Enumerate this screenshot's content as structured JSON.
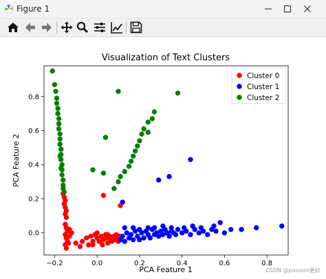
{
  "window": {
    "title": "Figure 1",
    "controls": [
      "minimize",
      "maximize",
      "close"
    ]
  },
  "toolbar": {
    "buttons": [
      {
        "icon": "home-icon",
        "label": "Home"
      },
      {
        "icon": "back-arrow-icon",
        "label": "Back"
      },
      {
        "icon": "forward-arrow-icon",
        "label": "Forward"
      },
      {
        "icon": "pan-icon",
        "label": "Pan"
      },
      {
        "icon": "zoom-icon",
        "label": "Zoom"
      },
      {
        "icon": "subplots-config-icon",
        "label": "Configure subplots"
      },
      {
        "icon": "edit-curves-icon",
        "label": "Edit axis, curve and image parameters"
      },
      {
        "icon": "save-icon",
        "label": "Save"
      }
    ]
  },
  "watermark": "CSDN @passion更好",
  "chart_data": {
    "type": "scatter",
    "title": "Visualization of Text Clusters",
    "xlabel": "PCA Feature 1",
    "ylabel": "PCA Feature 2",
    "xlim": [
      -0.25,
      0.9
    ],
    "ylim": [
      -0.13,
      0.98
    ],
    "xticks": [
      -0.2,
      0.0,
      0.2,
      0.4,
      0.6,
      0.8
    ],
    "xtick_labels": [
      "−0.2",
      "0.0",
      "0.2",
      "0.4",
      "0.6",
      "0.8"
    ],
    "yticks": [
      0.0,
      0.2,
      0.4,
      0.6,
      0.8
    ],
    "ytick_labels": [
      "0.0",
      "0.2",
      "0.4",
      "0.6",
      "0.8"
    ],
    "grid": false,
    "legend_position": "top-right",
    "colors": {
      "Cluster 0": "#ff0000",
      "Cluster 1": "#0000ff",
      "Cluster 2": "#008000"
    },
    "series": [
      {
        "name": "Cluster 0",
        "color": "#ff0000",
        "points": [
          [
            -0.16,
            0.23
          ],
          [
            -0.155,
            0.21
          ],
          [
            -0.15,
            0.19
          ],
          [
            -0.155,
            0.17
          ],
          [
            -0.15,
            0.15
          ],
          [
            -0.145,
            0.13
          ],
          [
            -0.15,
            0.11
          ],
          [
            -0.145,
            0.09
          ],
          [
            -0.15,
            0.05
          ],
          [
            -0.145,
            0.03
          ],
          [
            -0.14,
            0.01
          ],
          [
            -0.15,
            -0.01
          ],
          [
            -0.145,
            -0.03
          ],
          [
            -0.14,
            -0.05
          ],
          [
            -0.15,
            -0.07
          ],
          [
            -0.145,
            -0.09
          ],
          [
            -0.135,
            -0.06
          ],
          [
            -0.13,
            -0.02
          ],
          [
            -0.12,
            0.0
          ],
          [
            -0.13,
            0.02
          ],
          [
            -0.1,
            -0.06
          ],
          [
            -0.08,
            -0.08
          ],
          [
            -0.07,
            -0.05
          ],
          [
            -0.05,
            -0.03
          ],
          [
            -0.04,
            -0.07
          ],
          [
            -0.03,
            -0.02
          ],
          [
            -0.02,
            -0.05
          ],
          [
            -0.01,
            -0.01
          ],
          [
            0.0,
            -0.03
          ],
          [
            0.01,
            -0.05
          ],
          [
            0.02,
            -0.02
          ],
          [
            0.025,
            -0.07
          ],
          [
            0.03,
            -0.04
          ],
          [
            0.04,
            -0.01
          ],
          [
            0.045,
            -0.03
          ],
          [
            0.05,
            -0.06
          ],
          [
            0.06,
            -0.02
          ],
          [
            0.065,
            -0.04
          ],
          [
            0.07,
            -0.05
          ],
          [
            0.08,
            -0.02
          ],
          [
            0.085,
            -0.04
          ],
          [
            0.09,
            -0.01
          ],
          [
            0.095,
            -0.03
          ],
          [
            0.1,
            -0.05
          ],
          [
            0.105,
            -0.02
          ],
          [
            0.11,
            -0.03
          ],
          [
            0.03,
            0.22
          ],
          [
            0.11,
            0.16
          ],
          [
            -0.02,
            -0.07
          ],
          [
            0.0,
            0.0
          ],
          [
            0.05,
            -0.01
          ]
        ]
      },
      {
        "name": "Cluster 1",
        "color": "#0000ff",
        "points": [
          [
            0.11,
            -0.04
          ],
          [
            0.12,
            -0.02
          ],
          [
            0.13,
            -0.05
          ],
          [
            0.14,
            0.0
          ],
          [
            0.15,
            -0.03
          ],
          [
            0.16,
            -0.01
          ],
          [
            0.17,
            -0.04
          ],
          [
            0.18,
            0.01
          ],
          [
            0.19,
            -0.02
          ],
          [
            0.2,
            -0.04
          ],
          [
            0.21,
            0.0
          ],
          [
            0.22,
            -0.03
          ],
          [
            0.23,
            0.01
          ],
          [
            0.24,
            -0.01
          ],
          [
            0.25,
            -0.03
          ],
          [
            0.26,
            0.02
          ],
          [
            0.27,
            -0.01
          ],
          [
            0.28,
            0.0
          ],
          [
            0.29,
            -0.02
          ],
          [
            0.3,
            0.01
          ],
          [
            0.31,
            -0.01
          ],
          [
            0.32,
            0.02
          ],
          [
            0.33,
            0.0
          ],
          [
            0.34,
            -0.02
          ],
          [
            0.35,
            0.01
          ],
          [
            0.36,
            0.0
          ],
          [
            0.37,
            -0.01
          ],
          [
            0.38,
            0.02
          ],
          [
            0.4,
            0.0
          ],
          [
            0.42,
            0.01
          ],
          [
            0.44,
            -0.01
          ],
          [
            0.46,
            0.02
          ],
          [
            0.48,
            0.0
          ],
          [
            0.5,
            0.01
          ],
          [
            0.52,
            -0.01
          ],
          [
            0.54,
            0.02
          ],
          [
            0.56,
            0.01
          ],
          [
            0.6,
            0.0
          ],
          [
            0.63,
            0.02
          ],
          [
            0.68,
            0.02
          ],
          [
            0.75,
            0.03
          ],
          [
            0.87,
            0.04
          ],
          [
            0.13,
            0.03
          ],
          [
            0.17,
            0.03
          ],
          [
            0.2,
            0.02
          ],
          [
            0.24,
            0.03
          ],
          [
            0.27,
            0.03
          ],
          [
            0.31,
            0.04
          ],
          [
            0.35,
            0.03
          ],
          [
            0.41,
            0.03
          ],
          [
            0.45,
            0.04
          ],
          [
            0.49,
            0.03
          ],
          [
            0.55,
            0.04
          ],
          [
            0.58,
            0.06
          ],
          [
            0.12,
            0.18
          ],
          [
            0.29,
            0.31
          ],
          [
            0.34,
            0.33
          ],
          [
            0.44,
            0.43
          ]
        ]
      },
      {
        "name": "Cluster 2",
        "color": "#008000",
        "points": [
          [
            -0.21,
            0.95
          ],
          [
            -0.2,
            0.87
          ],
          [
            -0.195,
            0.83
          ],
          [
            -0.19,
            0.79
          ],
          [
            -0.19,
            0.76
          ],
          [
            -0.185,
            0.73
          ],
          [
            -0.185,
            0.7
          ],
          [
            -0.18,
            0.67
          ],
          [
            -0.18,
            0.64
          ],
          [
            -0.18,
            0.61
          ],
          [
            -0.175,
            0.58
          ],
          [
            -0.175,
            0.55
          ],
          [
            -0.175,
            0.52
          ],
          [
            -0.17,
            0.49
          ],
          [
            -0.17,
            0.46
          ],
          [
            -0.17,
            0.43
          ],
          [
            -0.165,
            0.4
          ],
          [
            -0.165,
            0.37
          ],
          [
            -0.165,
            0.34
          ],
          [
            -0.16,
            0.31
          ],
          [
            -0.16,
            0.28
          ],
          [
            -0.16,
            0.26
          ],
          [
            -0.155,
            0.24
          ],
          [
            -0.17,
            0.38
          ],
          [
            -0.175,
            0.45
          ],
          [
            0.1,
            0.83
          ],
          [
            0.38,
            0.82
          ],
          [
            0.27,
            0.71
          ],
          [
            0.26,
            0.67
          ],
          [
            0.24,
            0.65
          ],
          [
            0.22,
            0.61
          ],
          [
            0.21,
            0.58
          ],
          [
            0.2,
            0.54
          ],
          [
            0.19,
            0.51
          ],
          [
            0.18,
            0.48
          ],
          [
            0.17,
            0.45
          ],
          [
            0.16,
            0.42
          ],
          [
            0.15,
            0.39
          ],
          [
            0.13,
            0.36
          ],
          [
            0.11,
            0.33
          ],
          [
            0.1,
            0.3
          ],
          [
            0.08,
            0.26
          ],
          [
            0.04,
            0.56
          ],
          [
            -0.02,
            0.37
          ],
          [
            0.03,
            0.35
          ],
          [
            0.24,
            0.59
          ]
        ]
      }
    ]
  }
}
